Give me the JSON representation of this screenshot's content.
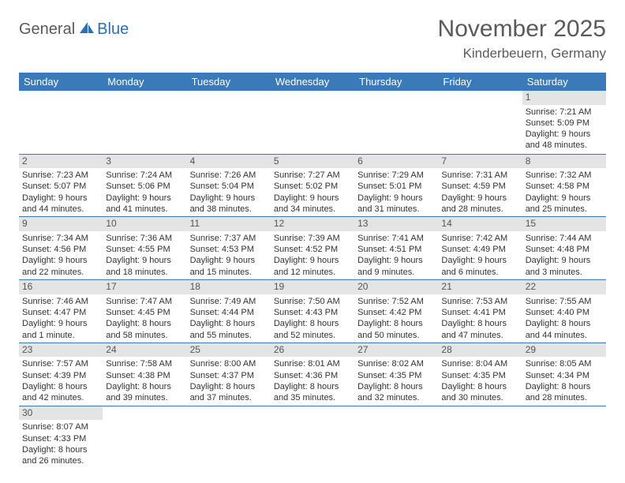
{
  "logo": {
    "part1": "General",
    "part2": "Blue"
  },
  "title": "November 2025",
  "location": "Kinderbeuern, Germany",
  "colors": {
    "header_bg": "#3a7ab8",
    "header_fg": "#ffffff",
    "daynum_bg": "#e4e4e4",
    "rule": "#3a7ab8",
    "brand_gray": "#5a5a5a",
    "brand_blue": "#2f6fb0"
  },
  "weekdays": [
    "Sunday",
    "Monday",
    "Tuesday",
    "Wednesday",
    "Thursday",
    "Friday",
    "Saturday"
  ],
  "weeks": [
    [
      null,
      null,
      null,
      null,
      null,
      null,
      {
        "n": "1",
        "sr": "7:21 AM",
        "ss": "5:09 PM",
        "dl": "9 hours and 48 minutes."
      }
    ],
    [
      {
        "n": "2",
        "sr": "7:23 AM",
        "ss": "5:07 PM",
        "dl": "9 hours and 44 minutes."
      },
      {
        "n": "3",
        "sr": "7:24 AM",
        "ss": "5:06 PM",
        "dl": "9 hours and 41 minutes."
      },
      {
        "n": "4",
        "sr": "7:26 AM",
        "ss": "5:04 PM",
        "dl": "9 hours and 38 minutes."
      },
      {
        "n": "5",
        "sr": "7:27 AM",
        "ss": "5:02 PM",
        "dl": "9 hours and 34 minutes."
      },
      {
        "n": "6",
        "sr": "7:29 AM",
        "ss": "5:01 PM",
        "dl": "9 hours and 31 minutes."
      },
      {
        "n": "7",
        "sr": "7:31 AM",
        "ss": "4:59 PM",
        "dl": "9 hours and 28 minutes."
      },
      {
        "n": "8",
        "sr": "7:32 AM",
        "ss": "4:58 PM",
        "dl": "9 hours and 25 minutes."
      }
    ],
    [
      {
        "n": "9",
        "sr": "7:34 AM",
        "ss": "4:56 PM",
        "dl": "9 hours and 22 minutes."
      },
      {
        "n": "10",
        "sr": "7:36 AM",
        "ss": "4:55 PM",
        "dl": "9 hours and 18 minutes."
      },
      {
        "n": "11",
        "sr": "7:37 AM",
        "ss": "4:53 PM",
        "dl": "9 hours and 15 minutes."
      },
      {
        "n": "12",
        "sr": "7:39 AM",
        "ss": "4:52 PM",
        "dl": "9 hours and 12 minutes."
      },
      {
        "n": "13",
        "sr": "7:41 AM",
        "ss": "4:51 PM",
        "dl": "9 hours and 9 minutes."
      },
      {
        "n": "14",
        "sr": "7:42 AM",
        "ss": "4:49 PM",
        "dl": "9 hours and 6 minutes."
      },
      {
        "n": "15",
        "sr": "7:44 AM",
        "ss": "4:48 PM",
        "dl": "9 hours and 3 minutes."
      }
    ],
    [
      {
        "n": "16",
        "sr": "7:46 AM",
        "ss": "4:47 PM",
        "dl": "9 hours and 1 minute."
      },
      {
        "n": "17",
        "sr": "7:47 AM",
        "ss": "4:45 PM",
        "dl": "8 hours and 58 minutes."
      },
      {
        "n": "18",
        "sr": "7:49 AM",
        "ss": "4:44 PM",
        "dl": "8 hours and 55 minutes."
      },
      {
        "n": "19",
        "sr": "7:50 AM",
        "ss": "4:43 PM",
        "dl": "8 hours and 52 minutes."
      },
      {
        "n": "20",
        "sr": "7:52 AM",
        "ss": "4:42 PM",
        "dl": "8 hours and 50 minutes."
      },
      {
        "n": "21",
        "sr": "7:53 AM",
        "ss": "4:41 PM",
        "dl": "8 hours and 47 minutes."
      },
      {
        "n": "22",
        "sr": "7:55 AM",
        "ss": "4:40 PM",
        "dl": "8 hours and 44 minutes."
      }
    ],
    [
      {
        "n": "23",
        "sr": "7:57 AM",
        "ss": "4:39 PM",
        "dl": "8 hours and 42 minutes."
      },
      {
        "n": "24",
        "sr": "7:58 AM",
        "ss": "4:38 PM",
        "dl": "8 hours and 39 minutes."
      },
      {
        "n": "25",
        "sr": "8:00 AM",
        "ss": "4:37 PM",
        "dl": "8 hours and 37 minutes."
      },
      {
        "n": "26",
        "sr": "8:01 AM",
        "ss": "4:36 PM",
        "dl": "8 hours and 35 minutes."
      },
      {
        "n": "27",
        "sr": "8:02 AM",
        "ss": "4:35 PM",
        "dl": "8 hours and 32 minutes."
      },
      {
        "n": "28",
        "sr": "8:04 AM",
        "ss": "4:35 PM",
        "dl": "8 hours and 30 minutes."
      },
      {
        "n": "29",
        "sr": "8:05 AM",
        "ss": "4:34 PM",
        "dl": "8 hours and 28 minutes."
      }
    ],
    [
      {
        "n": "30",
        "sr": "8:07 AM",
        "ss": "4:33 PM",
        "dl": "8 hours and 26 minutes."
      },
      null,
      null,
      null,
      null,
      null,
      null
    ]
  ]
}
